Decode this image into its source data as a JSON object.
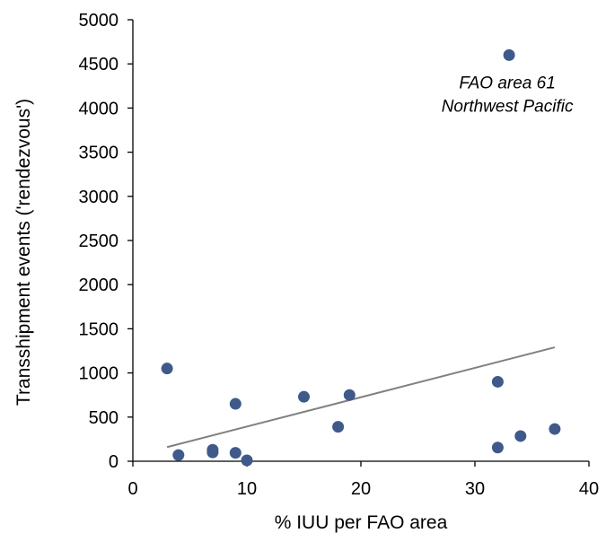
{
  "chart_data": {
    "type": "scatter",
    "title": "",
    "xlabel": "% IUU per FAO area",
    "ylabel": "Transshipment  events ('rendezvous')",
    "xlim": [
      0,
      40
    ],
    "ylim": [
      0,
      5000
    ],
    "x_ticks": [
      "0",
      "10",
      "20",
      "30",
      "40"
    ],
    "y_ticks": [
      "0",
      "500",
      "1000",
      "1500",
      "2000",
      "2500",
      "3000",
      "3500",
      "4000",
      "4500",
      "5000"
    ],
    "grid": false,
    "legend": "none",
    "points": [
      {
        "x": 3,
        "y": 1050
      },
      {
        "x": 4,
        "y": 70
      },
      {
        "x": 7,
        "y": 130
      },
      {
        "x": 7,
        "y": 100
      },
      {
        "x": 9,
        "y": 650
      },
      {
        "x": 9,
        "y": 95
      },
      {
        "x": 10,
        "y": 10
      },
      {
        "x": 15,
        "y": 730
      },
      {
        "x": 18,
        "y": 390
      },
      {
        "x": 19,
        "y": 750
      },
      {
        "x": 32,
        "y": 900
      },
      {
        "x": 32,
        "y": 155
      },
      {
        "x": 33,
        "y": 4600
      },
      {
        "x": 34,
        "y": 285
      },
      {
        "x": 37,
        "y": 365
      }
    ],
    "trendline": {
      "x": [
        3,
        37
      ],
      "y": [
        160,
        1290
      ]
    },
    "annotation": {
      "lines": [
        "FAO area 61",
        "Northwest Pacific"
      ],
      "anchor": {
        "x": 33,
        "y": 4100
      }
    },
    "colors": {
      "point": "#3f5a8a",
      "trendline": "#808080",
      "axis": "#000000"
    }
  }
}
